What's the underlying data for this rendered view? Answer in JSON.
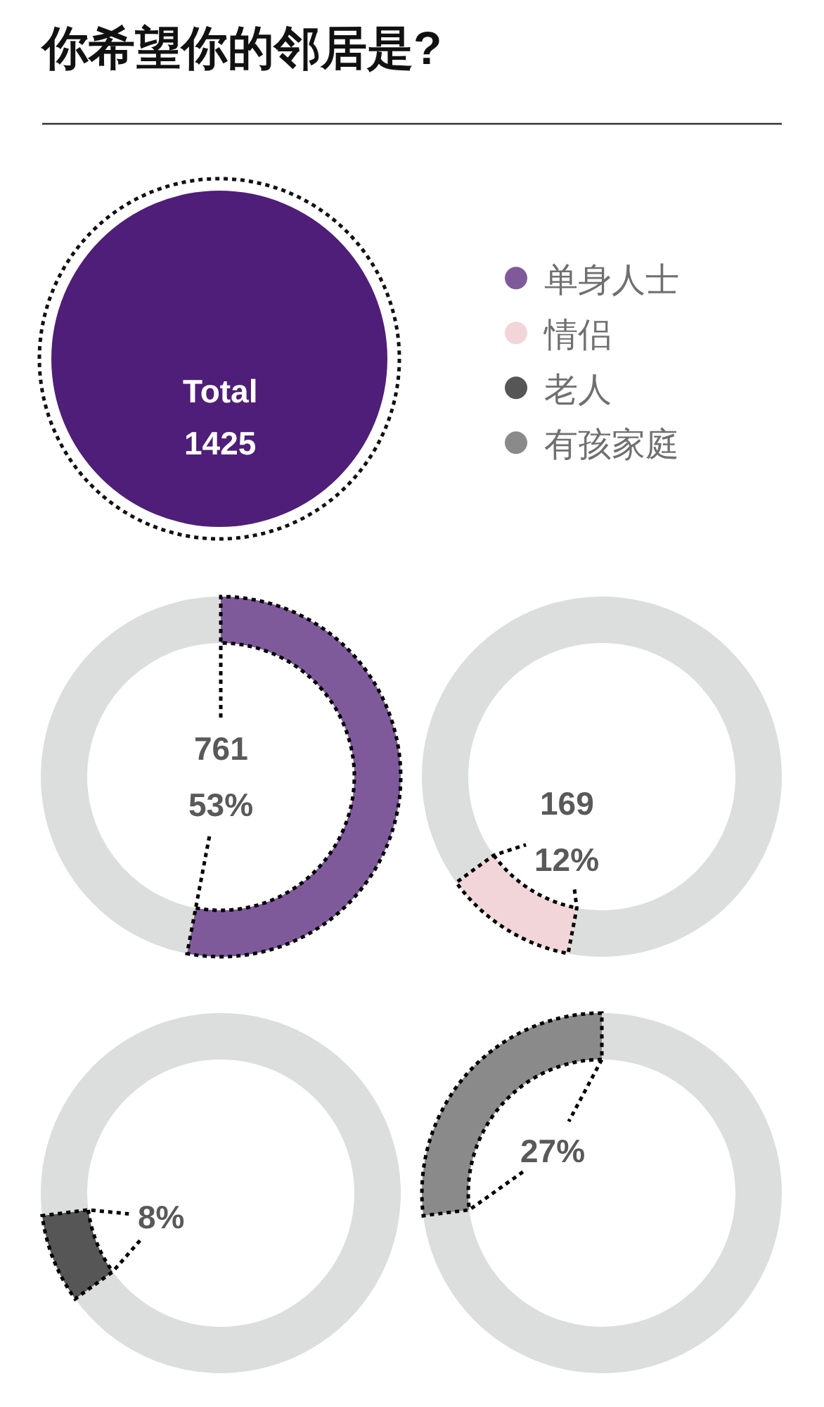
{
  "chart_data": [
    {
      "type": "other",
      "title": "你希望你的邻居是?",
      "annotations": [
        "Total",
        "1425"
      ]
    },
    {
      "type": "donut",
      "categories": [
        "单身人士",
        null
      ],
      "values": [
        53,
        47
      ],
      "colors": [
        "#7f5a9b",
        "#dcdddd"
      ],
      "value_labels": [
        "761\n53%",
        null
      ],
      "legend": "top right"
    },
    {
      "type": "donut",
      "categories": [
        null,
        "情侣",
        null
      ],
      "values": [
        53,
        12,
        35
      ],
      "colors": [
        "#dcdddd",
        "#f2d5d9",
        "#dcdddd"
      ],
      "value_labels": [
        null,
        "169\n12%",
        null
      ],
      "legend": "top left"
    },
    {
      "type": "donut",
      "categories": [
        null,
        "老人",
        null
      ],
      "values": [
        65,
        8,
        27
      ],
      "colors": [
        "#dcdddd",
        "#565656",
        "#dcdddd"
      ],
      "value_labels": [
        null,
        "8%",
        null
      ],
      "legend": "top right"
    },
    {
      "type": "donut",
      "categories": [
        null,
        "有孩家庭"
      ],
      "values": [
        73,
        27
      ],
      "colors": [
        "#dcdddd",
        "#8a8a8a"
      ],
      "value_labels": [
        null,
        "27%"
      ],
      "legend": "top left"
    }
  ]
}
